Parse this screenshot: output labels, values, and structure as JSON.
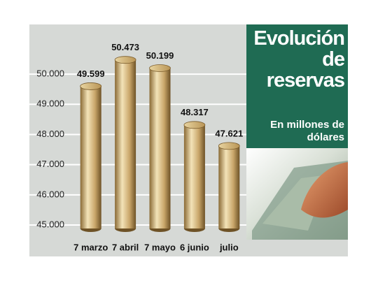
{
  "chart_data": {
    "type": "bar",
    "title": "Evolución de reservas",
    "subtitle": "En millones de dólares",
    "categories": [
      "7 marzo",
      "7 abril",
      "7 mayo",
      "6 junio",
      "julio"
    ],
    "values": [
      49599,
      50473,
      50199,
      48317,
      47621
    ],
    "value_labels": [
      "49.599",
      "50.473",
      "50.199",
      "48.317",
      "47.621"
    ],
    "color": "#c8a96a",
    "ylim": [
      44700,
      51600
    ],
    "yticks": [
      {
        "value": 45000,
        "label": "45.000"
      },
      {
        "value": 46000,
        "label": "46.000"
      },
      {
        "value": 47000,
        "label": "47.000"
      },
      {
        "value": 48000,
        "label": "48.000"
      },
      {
        "value": 49000,
        "label": "49.000"
      },
      {
        "value": 50000,
        "label": "50.000"
      }
    ],
    "grid": true
  }
}
